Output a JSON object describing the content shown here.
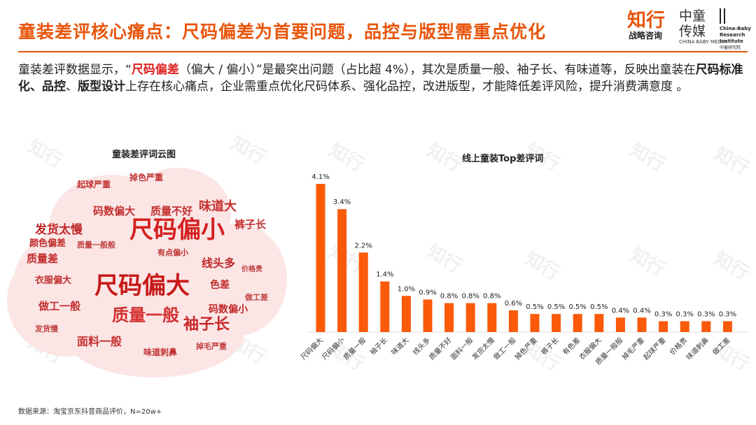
{
  "header": {
    "title": "童装差评核心痛点：尺码偏差为首要问题，品控与版型需重点优化",
    "logos": {
      "zhixing": "知行",
      "zhixing_sub": "战略咨询",
      "zhongtong": "中童传媒",
      "zhongtong_sub": "CHINA BABY MEDIA",
      "institute": "China-Baby Research Institute",
      "institute_sub": "中童研究院"
    }
  },
  "summary": {
    "p1": "童装差评数据显示，“",
    "h1": "尺码偏差",
    "p2": "（偏大 / 偏小）”是最突出问题（占比超 4%），其次是质量一般、袖子长、有味道等，反映出童装在",
    "b1": "尺码标准化、品控",
    "p3": "、",
    "b2": "版型设计",
    "p4": "上存在核心痛点，企业需重点优化尺码体系、强化品控，改进版型，才能降低差评风险，提升消费满意度 。"
  },
  "wordcloud": {
    "title": "童装差评词云图",
    "words": [
      "尺码偏小",
      "尺码偏大",
      "质量一般",
      "袖子长",
      "码数偏大",
      "质量不好",
      "味道大",
      "发货太慢",
      "线头多",
      "裤子长",
      "掉色严重",
      "起球严重",
      "面料一般",
      "做工一般",
      "质量差",
      "衣服偏大",
      "有点偏小",
      "码数偏小",
      "味道刺鼻",
      "色差",
      "价格贵",
      "质量一般般",
      "掉毛严重",
      "发货慢",
      "颜色偏差",
      "做工差"
    ]
  },
  "chart_data": {
    "type": "bar",
    "title": "线上童装Top差评词",
    "categories": [
      "尺码偏大",
      "尺码偏小",
      "质量一般",
      "袖子长",
      "味道大",
      "线头多",
      "质量不好",
      "面料一般",
      "发货太慢",
      "做工一般",
      "掉色严重",
      "裤子长",
      "有色差",
      "衣服偏大",
      "质量一般般",
      "掉毛严重",
      "起球严重",
      "价格贵",
      "味道刺鼻",
      "做工差"
    ],
    "values": [
      4.1,
      3.4,
      2.2,
      1.4,
      1.0,
      0.9,
      0.8,
      0.8,
      0.8,
      0.6,
      0.5,
      0.5,
      0.5,
      0.5,
      0.4,
      0.4,
      0.3,
      0.3,
      0.3,
      0.3
    ],
    "labels": [
      "4.1%",
      "3.4%",
      "2.2%",
      "1.4%",
      "1.0%",
      "0.9%",
      "0.8%",
      "0.8%",
      "0.8%",
      "0.6%",
      "0.5%",
      "0.5%",
      "0.5%",
      "0.5%",
      "0.4%",
      "0.4%",
      "0.3%",
      "0.3%",
      "0.3%",
      "0.3%"
    ],
    "color": "#fa5a0a",
    "unit": "%"
  },
  "footer": {
    "source": "数据来源：淘宝京东抖音商品评价，N=20w+"
  },
  "watermark": "知行"
}
